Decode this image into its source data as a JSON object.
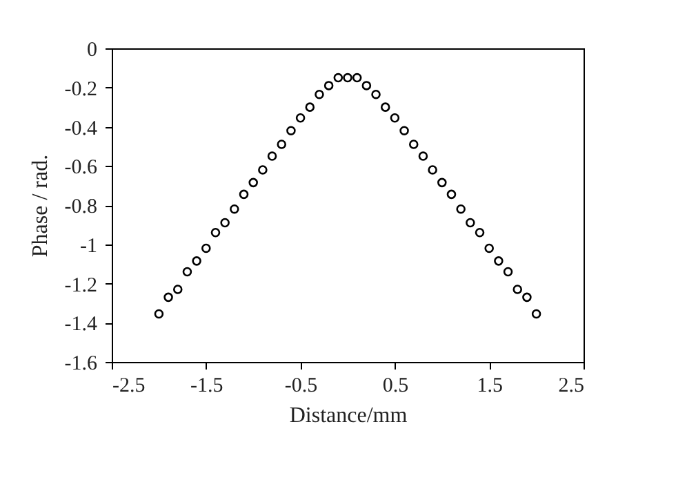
{
  "chart_data": {
    "type": "scatter",
    "xlabel": "Distance/mm",
    "ylabel": "Phase / rad.",
    "x": [
      -2,
      -1.9,
      -1.8,
      -1.7,
      -1.6,
      -1.5,
      -1.4,
      -1.3,
      -1.2,
      -1.1,
      -1,
      -0.9,
      -0.8,
      -0.7,
      -0.6,
      -0.5,
      -0.4,
      -0.3,
      -0.2,
      -0.1,
      0,
      0.1,
      0.2,
      0.3,
      0.4,
      0.5,
      0.6,
      0.7,
      0.8,
      0.9,
      1,
      1.1,
      1.2,
      1.3,
      1.4,
      1.5,
      1.6,
      1.7,
      1.8,
      1.9,
      2
    ],
    "series": [
      {
        "color": "#000000",
        "values": [
          -1.355,
          -1.27,
          -1.23,
          -1.14,
          -1.085,
          -1.02,
          -0.94,
          -0.89,
          -0.82,
          -0.745,
          -0.685,
          -0.62,
          -0.55,
          -0.49,
          -0.42,
          -0.355,
          -0.3,
          -0.235,
          -0.19,
          -0.15,
          -0.15,
          -0.15,
          -0.19,
          -0.235,
          -0.3,
          -0.355,
          -0.42,
          -0.49,
          -0.55,
          -0.62,
          -0.685,
          -0.745,
          -0.82,
          -0.89,
          -0.94,
          -1.02,
          -1.085,
          -1.14,
          -1.23,
          -1.27,
          -1.355
        ]
      }
    ],
    "xlim": [
      -2.5,
      2.5
    ],
    "xticks": [
      -2.5,
      -1.5,
      -0.5,
      0.5,
      1.5,
      2.5
    ],
    "ylim": [
      -1.6,
      0
    ],
    "yticks": [
      -1.6,
      -1.4,
      -1.2,
      -1,
      -0.8,
      -0.6,
      -0.4,
      -0.2,
      0
    ],
    "marker": "circle",
    "grid": false
  }
}
